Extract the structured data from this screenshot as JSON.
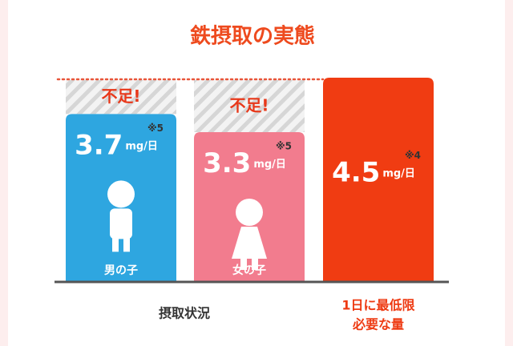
{
  "chart_data": {
    "type": "bar",
    "title": "鉄摂取の実態",
    "categories": [
      "男の子",
      "女の子",
      null
    ],
    "values": [
      3.7,
      3.3,
      4.5
    ],
    "unit": "mg/日",
    "notes": [
      "※5",
      "※5",
      "※4"
    ],
    "colors": [
      "#2ea6e0",
      "#f27c8e",
      "#f03c12"
    ],
    "shortfall_label": "不足!",
    "group_labels": {
      "intake": "摂取状況",
      "required": [
        "1日に最低限",
        "必要な量"
      ]
    },
    "ylim": [
      0,
      4.5
    ]
  }
}
